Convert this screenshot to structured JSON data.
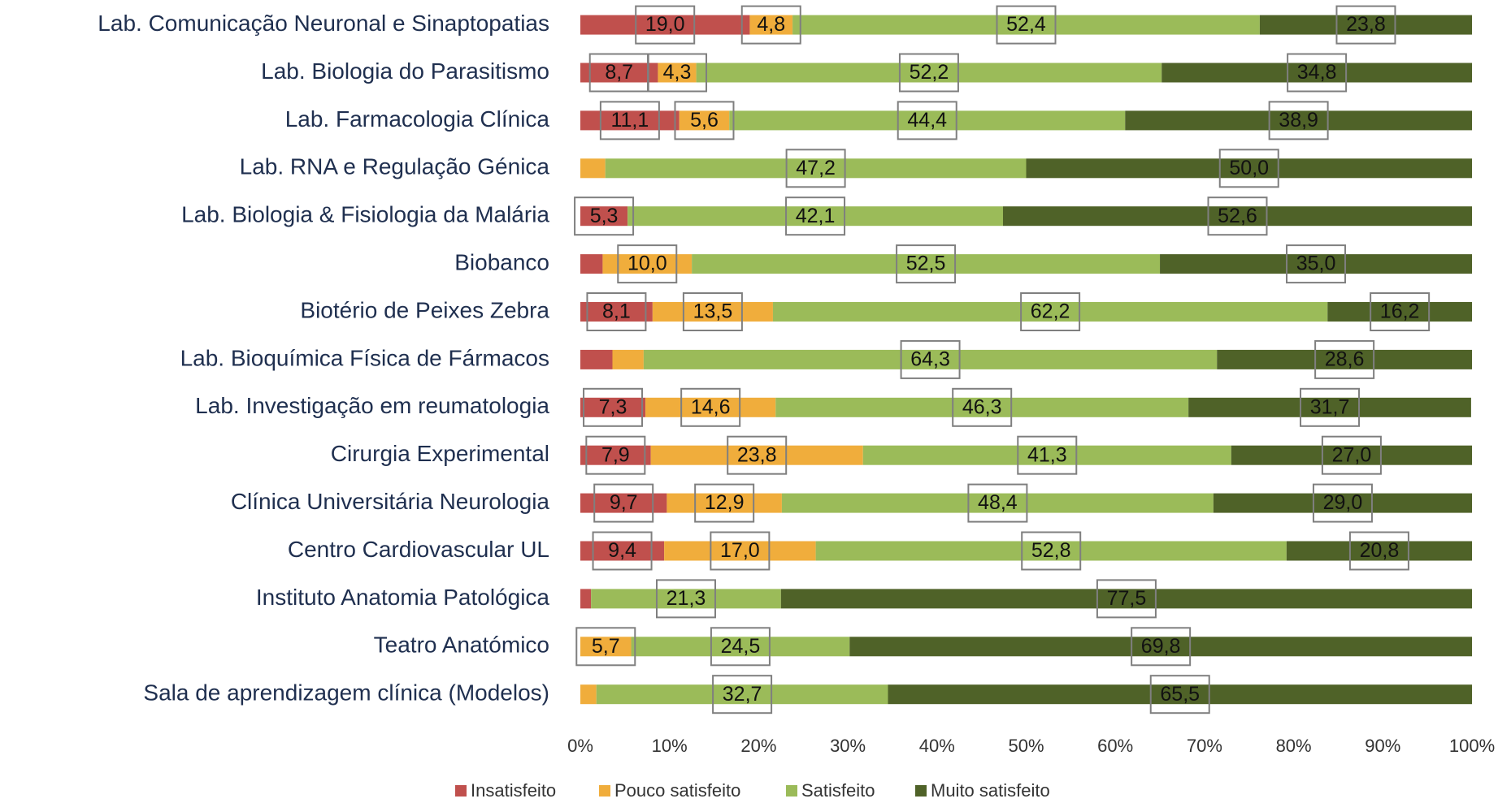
{
  "chart_data": {
    "type": "stacked-barh",
    "categories": [
      "Lab. Comunicação Neuronal e Sinaptopatias",
      "Lab. Biologia do Parasitismo",
      "Lab. Farmacologia Clínica",
      "Lab. RNA e Regulação Génica",
      "Lab. Biologia & Fisiologia da Malária",
      "Biobanco",
      "Biotério de Peixes Zebra",
      "Lab. Bioquímica Física de Fármacos",
      "Lab. Investigação em reumatologia",
      "Cirurgia Experimental",
      "Clínica Universitária Neurologia",
      "Centro Cardiovascular UL",
      "Instituto Anatomia Patológica",
      "Teatro Anatómico",
      "Sala de aprendizagem clínica (Modelos)"
    ],
    "series": [
      {
        "name": "Insatisfeito",
        "color": "#c0504d",
        "values": [
          19.0,
          8.7,
          11.1,
          null,
          5.3,
          2.5,
          8.1,
          3.6,
          7.3,
          7.9,
          9.7,
          9.4,
          1.2,
          null,
          null
        ],
        "value_labels": [
          "19,0",
          "8,7",
          "11,1",
          null,
          "5,3",
          null,
          "8,1",
          null,
          "7,3",
          "7,9",
          "9,7",
          "9,4",
          null,
          null,
          null
        ]
      },
      {
        "name": "Pouco satisfeito",
        "color": "#f0ad3c",
        "values": [
          4.8,
          4.3,
          5.6,
          2.8,
          null,
          10.0,
          13.5,
          3.5,
          14.6,
          23.8,
          12.9,
          17.0,
          null,
          5.7,
          1.8
        ],
        "value_labels": [
          "4,8",
          "4,3",
          "5,6",
          null,
          null,
          "10,0",
          "13,5",
          null,
          "14,6",
          "23,8",
          "12,9",
          "17,0",
          null,
          "5,7",
          null
        ]
      },
      {
        "name": "Satisfeito",
        "color": "#9bbb59",
        "values": [
          52.4,
          52.2,
          44.4,
          47.2,
          42.1,
          52.5,
          62.2,
          64.3,
          46.3,
          41.3,
          48.4,
          52.8,
          21.3,
          24.5,
          32.7
        ],
        "value_labels": [
          "52,4",
          "52,2",
          "44,4",
          "47,2",
          "42,1",
          "52,5",
          "62,2",
          "64,3",
          "46,3",
          "41,3",
          "48,4",
          "52,8",
          "21,3",
          "24,5",
          "32,7"
        ]
      },
      {
        "name": "Muito satisfeito",
        "color": "#4f6228",
        "values": [
          23.8,
          34.8,
          38.9,
          50.0,
          52.6,
          35.0,
          16.2,
          28.6,
          31.7,
          27.0,
          29.0,
          20.8,
          77.5,
          69.8,
          65.5
        ],
        "value_labels": [
          "23,8",
          "34,8",
          "38,9",
          "50,0",
          "52,6",
          "35,0",
          "16,2",
          "28,6",
          "31,7",
          "27,0",
          "29,0",
          "20,8",
          "77,5",
          "69,8",
          "65,5"
        ]
      }
    ],
    "xlim": [
      0,
      100
    ],
    "xticks": [
      {
        "value": 0,
        "label": "0%"
      },
      {
        "value": 10,
        "label": "10%"
      },
      {
        "value": 20,
        "label": "20%"
      },
      {
        "value": 30,
        "label": "30%"
      },
      {
        "value": 40,
        "label": "40%"
      },
      {
        "value": 50,
        "label": "50%"
      },
      {
        "value": 60,
        "label": "60%"
      },
      {
        "value": 70,
        "label": "70%"
      },
      {
        "value": 80,
        "label": "80%"
      },
      {
        "value": 90,
        "label": "90%"
      },
      {
        "value": 100,
        "label": "100%"
      }
    ],
    "legend": "bottom"
  }
}
